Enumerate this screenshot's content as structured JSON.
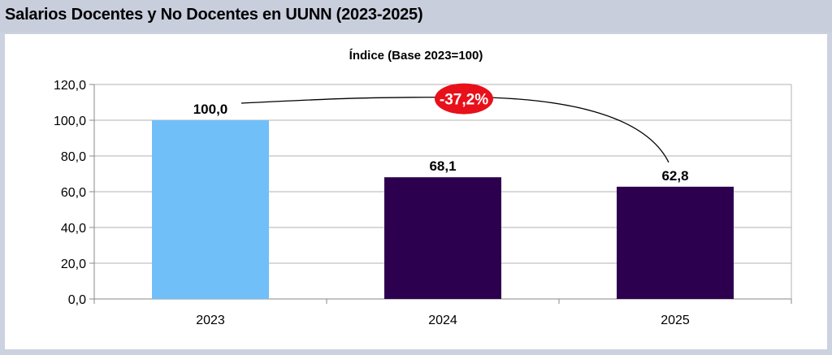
{
  "header": {
    "title": "Salarios Docentes y No Docentes en UUNN (2023-2025)"
  },
  "chart_data": {
    "type": "bar",
    "title": "Índice (Base 2023=100)",
    "xlabel": "",
    "ylabel": "",
    "categories": [
      "2023",
      "2024",
      "2025"
    ],
    "values": [
      100.0,
      68.1,
      62.8
    ],
    "data_labels": [
      "100,0",
      "68,1",
      "62,8"
    ],
    "bar_colors": [
      "#70bff9",
      "#2d004f",
      "#2d004f"
    ],
    "ylim": [
      0,
      120
    ],
    "yticks": [
      0,
      20,
      40,
      60,
      80,
      100,
      120
    ],
    "ytick_labels": [
      "0,0",
      "20,0",
      "40,0",
      "60,0",
      "80,0",
      "100,0",
      "120,0"
    ],
    "grid": true,
    "legend": "none",
    "annotation": {
      "text": "-37,2%",
      "from": "2023",
      "to": "2025",
      "color": "#e8101a"
    }
  }
}
